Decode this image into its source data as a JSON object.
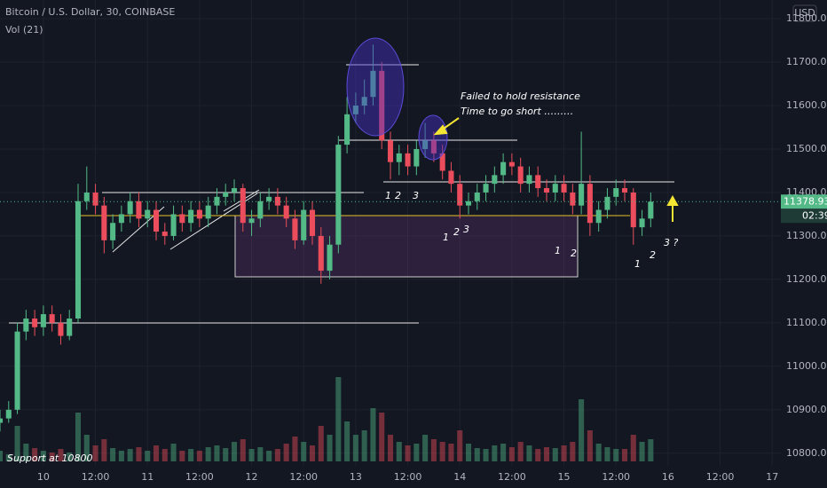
{
  "chart_data": {
    "type": "candlestick",
    "title": "Bitcoin / U.S. Dollar, 30, COINBASE",
    "indicator": "Vol (21)",
    "currency": "USD",
    "countdown": "02:39",
    "up_color": "#53b987",
    "down_color": "#eb4d5c",
    "grid": true,
    "x": [
      -10,
      -8,
      -6,
      -4,
      -2,
      0,
      2,
      4,
      6,
      8,
      10,
      12,
      14,
      16,
      18,
      20,
      22,
      24,
      26,
      28,
      30,
      32,
      34,
      36,
      38,
      40,
      42,
      44,
      46,
      48,
      50,
      52,
      54,
      56,
      58,
      60,
      62,
      64,
      66,
      68,
      70,
      72,
      74,
      76,
      78,
      80,
      82,
      84,
      86,
      88,
      90,
      92,
      94,
      96,
      98,
      100,
      102,
      104,
      106,
      108,
      110,
      112,
      114,
      116,
      118,
      120,
      122,
      124,
      126,
      128,
      130,
      132,
      134,
      136,
      138,
      140
    ],
    "open": [
      10870,
      10880,
      10900,
      11080,
      11110,
      11090,
      11120,
      11100,
      11070,
      11110,
      11380,
      11400,
      11370,
      11290,
      11330,
      11350,
      11380,
      11340,
      11360,
      11310,
      11300,
      11350,
      11330,
      11360,
      11340,
      11370,
      11390,
      11400,
      11410,
      11330,
      11340,
      11380,
      11390,
      11370,
      11340,
      11290,
      11360,
      11300,
      11220,
      11280,
      11510,
      11580,
      11600,
      11620,
      11680,
      11520,
      11470,
      11490,
      11460,
      11500,
      11520,
      11490,
      11450,
      11420,
      11370,
      11380,
      11400,
      11420,
      11440,
      11470,
      11460,
      11420,
      11440,
      11410,
      11400,
      11420,
      11400,
      11370,
      11420,
      11330,
      11360,
      11390,
      11410,
      11400,
      11320,
      11340
    ],
    "high": [
      10900,
      10920,
      11100,
      11130,
      11130,
      11140,
      11140,
      11120,
      11130,
      11420,
      11460,
      11420,
      11390,
      11350,
      11370,
      11400,
      11400,
      11380,
      11380,
      11330,
      11370,
      11370,
      11380,
      11380,
      11390,
      11410,
      11420,
      11430,
      11420,
      11360,
      11400,
      11410,
      11410,
      11390,
      11360,
      11380,
      11380,
      11320,
      11300,
      11530,
      11620,
      11630,
      11660,
      11740,
      11700,
      11540,
      11510,
      11510,
      11520,
      11560,
      11540,
      11510,
      11470,
      11440,
      11400,
      11420,
      11440,
      11460,
      11490,
      11490,
      11480,
      11460,
      11460,
      11430,
      11440,
      11440,
      11420,
      11540,
      11440,
      11380,
      11410,
      11430,
      11430,
      11410,
      11360,
      11400
    ],
    "low": [
      10850,
      10870,
      10890,
      11060,
      11070,
      11070,
      11080,
      11050,
      11060,
      11100,
      11360,
      11350,
      11260,
      11270,
      11310,
      11330,
      11320,
      11320,
      11290,
      11280,
      11290,
      11310,
      11310,
      11320,
      11320,
      11350,
      11370,
      11380,
      11310,
      11300,
      11320,
      11360,
      11350,
      11320,
      11270,
      11280,
      11280,
      11190,
      11200,
      11260,
      11490,
      11560,
      11580,
      11600,
      11500,
      11430,
      11440,
      11440,
      11440,
      11480,
      11470,
      11430,
      11400,
      11340,
      11350,
      11360,
      11380,
      11400,
      11420,
      11440,
      11400,
      11400,
      11390,
      11380,
      11380,
      11380,
      11350,
      11350,
      11300,
      11310,
      11340,
      11370,
      11380,
      11280,
      11300,
      11320
    ],
    "close": [
      10880,
      10900,
      11080,
      11110,
      11090,
      11120,
      11100,
      11070,
      11110,
      11380,
      11400,
      11370,
      11290,
      11330,
      11350,
      11380,
      11340,
      11360,
      11310,
      11300,
      11350,
      11330,
      11360,
      11340,
      11370,
      11390,
      11400,
      11410,
      11330,
      11340,
      11380,
      11390,
      11370,
      11340,
      11290,
      11360,
      11300,
      11220,
      11280,
      11510,
      11580,
      11600,
      11620,
      11680,
      11520,
      11470,
      11490,
      11460,
      11500,
      11520,
      11490,
      11450,
      11420,
      11370,
      11380,
      11400,
      11420,
      11440,
      11470,
      11460,
      11420,
      11440,
      11410,
      11400,
      11420,
      11400,
      11370,
      11420,
      11330,
      11360,
      11390,
      11410,
      11400,
      11320,
      11340,
      11378.93
    ],
    "volume": [
      12,
      8,
      40,
      20,
      15,
      12,
      10,
      14,
      10,
      55,
      30,
      18,
      25,
      15,
      12,
      14,
      16,
      12,
      18,
      14,
      20,
      12,
      14,
      12,
      16,
      18,
      15,
      22,
      25,
      14,
      16,
      12,
      14,
      20,
      28,
      22,
      18,
      40,
      30,
      95,
      45,
      30,
      35,
      60,
      55,
      30,
      22,
      18,
      20,
      30,
      25,
      22,
      20,
      35,
      20,
      15,
      14,
      18,
      20,
      16,
      22,
      18,
      14,
      16,
      15,
      18,
      22,
      70,
      35,
      20,
      16,
      14,
      14,
      30,
      22,
      25
    ],
    "xlim": [
      -10,
      170
    ],
    "xticks": [
      {
        "value": 0,
        "label": "10"
      },
      {
        "value": 12,
        "label": "12:00"
      },
      {
        "value": 24,
        "label": "11"
      },
      {
        "value": 36,
        "label": "12:00"
      },
      {
        "value": 48,
        "label": "12"
      },
      {
        "value": 60,
        "label": "12:00"
      },
      {
        "value": 72,
        "label": "13"
      },
      {
        "value": 84,
        "label": "12:00"
      },
      {
        "value": 96,
        "label": "14"
      },
      {
        "value": 108,
        "label": "12:00"
      },
      {
        "value": 120,
        "label": "15"
      },
      {
        "value": 132,
        "label": "12:00"
      },
      {
        "value": 144,
        "label": "16"
      },
      {
        "value": 156,
        "label": "12:00"
      },
      {
        "value": 168,
        "label": "17"
      }
    ],
    "ylim": [
      10771,
      11843
    ],
    "yticks": [
      {
        "value": 10800,
        "label": "10800.00"
      },
      {
        "value": 10900,
        "label": "10900.00"
      },
      {
        "value": 11000,
        "label": "11000.00"
      },
      {
        "value": 11100,
        "label": "11100.00"
      },
      {
        "value": 11200,
        "label": "11200.00"
      },
      {
        "value": 11300,
        "label": "11300.00"
      },
      {
        "value": 11400,
        "label": "11400.00"
      },
      {
        "value": 11500,
        "label": "11500.00"
      },
      {
        "value": 11600,
        "label": "11600.00"
      },
      {
        "value": 11700,
        "label": "11700.00"
      },
      {
        "value": 11800,
        "label": "11800.00"
      }
    ],
    "annotations": [
      "Failed to hold resistance",
      "Time to go short ………",
      "1",
      "2",
      "3",
      "1",
      "2",
      "3",
      "1",
      "2",
      "1",
      "2",
      "3 ?",
      "Support at 10800"
    ]
  }
}
